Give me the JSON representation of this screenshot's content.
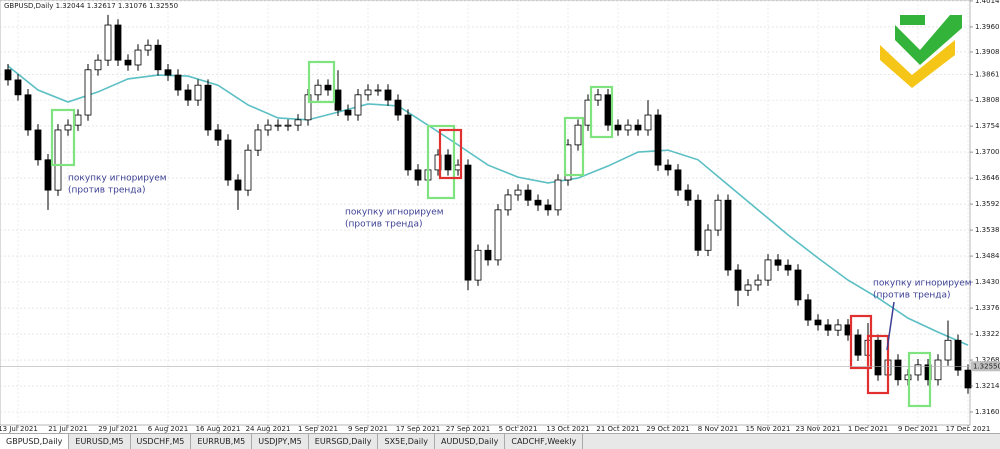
{
  "chart_data": {
    "type": "candlestick",
    "title": "GBPUSD,Daily  1.32044 1.32617 1.31076 1.32550",
    "categories": [
      null,
      "13 Jul 2021",
      null,
      null,
      null,
      null,
      "21 Jul 2021",
      null,
      null,
      null,
      null,
      "29 Jul 2021",
      null,
      null,
      null,
      null,
      "6 Aug 2021",
      null,
      null,
      null,
      null,
      "16 Aug 2021",
      null,
      null,
      null,
      null,
      "24 Aug 2021",
      null,
      null,
      null,
      null,
      "1 Sep 2021",
      null,
      null,
      null,
      null,
      "9 Sep 2021",
      null,
      null,
      null,
      null,
      "17 Sep 2021",
      null,
      null,
      null,
      null,
      "27 Sep 2021",
      null,
      null,
      null,
      null,
      "5 Oct 2021",
      null,
      null,
      null,
      null,
      "13 Oct 2021",
      null,
      null,
      null,
      null,
      "21 Oct 2021",
      null,
      null,
      null,
      null,
      "29 Oct 2021",
      null,
      null,
      null,
      null,
      "8 Nov 2021",
      null,
      null,
      null,
      null,
      "15 Nov 2021",
      null,
      null,
      null,
      null,
      "23 Nov 2021",
      null,
      null,
      null,
      null,
      "1 Dec 2021",
      null,
      null,
      null,
      null,
      "9 Dec 2021",
      null,
      null,
      null,
      null,
      "17 Dec 2021"
    ],
    "open": [
      1.3871,
      1.385,
      1.3819,
      1.3746,
      1.3684,
      1.3621,
      1.3746,
      1.3756,
      1.3777,
      1.3871,
      1.3891,
      1.3964,
      1.3891,
      1.3881,
      1.3912,
      1.3922,
      1.3871,
      1.386,
      1.3829,
      1.3808,
      1.3839,
      1.3746,
      1.3725,
      1.3642,
      1.3621,
      1.3704,
      1.3746,
      1.3756,
      1.3756,
      1.3756,
      1.3767,
      1.3819,
      1.3839,
      1.3829,
      1.3787,
      1.3777,
      1.3819,
      1.3829,
      1.3829,
      1.3808,
      1.3777,
      1.3663,
      1.3642,
      1.3663,
      1.3694,
      1.3663,
      1.3673,
      1.3434,
      1.3496,
      1.3476,
      1.358,
      1.3611,
      1.3621,
      1.36,
      1.359,
      1.358,
      1.3642,
      1.3715,
      1.3756,
      1.3808,
      1.3819,
      1.3756,
      1.3746,
      1.3756,
      1.3746,
      1.3777,
      1.3673,
      1.3663,
      1.3621,
      1.36,
      1.3496,
      1.3538,
      1.36,
      1.3455,
      1.3413,
      1.3424,
      1.3434,
      1.3476,
      1.3465,
      1.3455,
      1.3393,
      1.3351,
      1.3341,
      1.333,
      1.3341,
      1.332,
      1.3278,
      1.3309,
      1.3237,
      1.3268,
      1.3227,
      1.3237,
      1.3258,
      1.3227,
      1.3268,
      1.3309,
      1.3247
    ],
    "high": [
      1.3883,
      1.3862,
      1.3831,
      1.3758,
      1.3696,
      1.3758,
      1.3768,
      1.3789,
      1.3883,
      1.3903,
      1.3985,
      1.3976,
      1.3903,
      1.3924,
      1.3934,
      1.3934,
      1.3883,
      1.3872,
      1.3841,
      1.3851,
      1.3851,
      1.3758,
      1.3737,
      1.3654,
      1.3716,
      1.3758,
      1.3768,
      1.3768,
      1.3768,
      1.3779,
      1.3831,
      1.3851,
      1.3851,
      1.387,
      1.3799,
      1.3831,
      1.3841,
      1.3841,
      1.3841,
      1.382,
      1.3789,
      1.3675,
      1.3675,
      1.3706,
      1.3706,
      1.3685,
      1.3685,
      1.3508,
      1.3508,
      1.3592,
      1.3623,
      1.3633,
      1.3633,
      1.3612,
      1.3602,
      1.3654,
      1.3727,
      1.3768,
      1.382,
      1.3831,
      1.3831,
      1.3768,
      1.3768,
      1.3768,
      1.3808,
      1.3789,
      1.3685,
      1.3675,
      1.3633,
      1.3612,
      1.355,
      1.3612,
      1.3612,
      1.3467,
      1.3436,
      1.3446,
      1.3488,
      1.3488,
      1.3477,
      1.3467,
      1.3405,
      1.3363,
      1.3353,
      1.3353,
      1.3353,
      1.3332,
      1.3345,
      1.3321,
      1.328,
      1.328,
      1.3249,
      1.327,
      1.327,
      1.328,
      1.335,
      1.3321,
      1.3259
    ],
    "low": [
      1.3838,
      1.3807,
      1.3734,
      1.3672,
      1.358,
      1.3609,
      1.3734,
      1.3744,
      1.3765,
      1.3859,
      1.3879,
      1.3879,
      1.3869,
      1.3869,
      1.39,
      1.3859,
      1.3848,
      1.3817,
      1.3796,
      1.3796,
      1.3734,
      1.3713,
      1.363,
      1.358,
      1.3609,
      1.3692,
      1.3734,
      1.3744,
      1.3744,
      1.3744,
      1.3755,
      1.3807,
      1.3817,
      1.3775,
      1.3765,
      1.3765,
      1.3807,
      1.3817,
      1.3796,
      1.3765,
      1.3651,
      1.363,
      1.363,
      1.3651,
      1.3651,
      1.3651,
      1.3413,
      1.3422,
      1.3464,
      1.3464,
      1.3568,
      1.3599,
      1.3588,
      1.3578,
      1.3568,
      1.3568,
      1.363,
      1.3703,
      1.3744,
      1.3796,
      1.3744,
      1.3734,
      1.3734,
      1.3734,
      1.3734,
      1.3661,
      1.3651,
      1.3609,
      1.3588,
      1.3484,
      1.3484,
      1.3526,
      1.3443,
      1.338,
      1.3401,
      1.3412,
      1.3422,
      1.3453,
      1.3443,
      1.3381,
      1.3339,
      1.3329,
      1.3318,
      1.3318,
      1.3308,
      1.3266,
      1.3266,
      1.3225,
      1.3225,
      1.3215,
      1.3215,
      1.3225,
      1.3215,
      1.3215,
      1.3256,
      1.3235,
      1.3198
    ],
    "close": [
      1.385,
      1.3819,
      1.3746,
      1.3684,
      1.3621,
      1.3746,
      1.3756,
      1.3777,
      1.3871,
      1.3891,
      1.3964,
      1.3891,
      1.3881,
      1.3912,
      1.3922,
      1.3871,
      1.386,
      1.3829,
      1.3808,
      1.3839,
      1.3746,
      1.3725,
      1.3642,
      1.3621,
      1.3704,
      1.3746,
      1.3756,
      1.3756,
      1.3756,
      1.3767,
      1.3819,
      1.3839,
      1.3829,
      1.3787,
      1.3777,
      1.3819,
      1.3829,
      1.3829,
      1.3808,
      1.3777,
      1.3663,
      1.3642,
      1.3663,
      1.3694,
      1.3663,
      1.3673,
      1.3434,
      1.3496,
      1.3476,
      1.358,
      1.3611,
      1.3621,
      1.36,
      1.359,
      1.358,
      1.3642,
      1.3715,
      1.3756,
      1.3808,
      1.3819,
      1.3756,
      1.3746,
      1.3756,
      1.3746,
      1.3777,
      1.3673,
      1.3663,
      1.3621,
      1.36,
      1.3496,
      1.3538,
      1.36,
      1.3455,
      1.3413,
      1.3424,
      1.3434,
      1.3476,
      1.3465,
      1.3455,
      1.3393,
      1.3351,
      1.3341,
      1.333,
      1.3341,
      1.332,
      1.3278,
      1.3309,
      1.3237,
      1.3268,
      1.3227,
      1.3237,
      1.3258,
      1.3227,
      1.3268,
      1.3309,
      1.3247,
      1.321
    ],
    "up_color": "#ffffff",
    "down_color": "#000000",
    "ma": {
      "color": "#5bbfc4",
      "x": [
        0,
        3,
        6,
        9,
        12,
        15,
        18,
        21,
        24,
        27,
        30,
        33,
        36,
        39,
        42,
        45,
        48,
        51,
        54,
        57,
        60,
        63,
        66,
        69,
        72,
        75,
        78,
        81,
        84,
        87,
        90,
        93,
        96
      ],
      "values": [
        1.3879,
        1.3829,
        1.3804,
        1.3825,
        1.3852,
        1.386,
        1.3858,
        1.3839,
        1.3798,
        1.3771,
        1.3767,
        1.3783,
        1.38,
        1.3796,
        1.3756,
        1.3715,
        1.3673,
        1.3648,
        1.3636,
        1.3646,
        1.3671,
        1.37,
        1.3704,
        1.3684,
        1.3632,
        1.358,
        1.3528,
        1.348,
        1.3434,
        1.3397,
        1.3355,
        1.3326,
        1.3299
      ]
    },
    "ylim": [
      1.3133,
      1.4016
    ],
    "yticks": [
      {
        "value": 1.4014,
        "label": "1.40140"
      },
      {
        "value": 1.396,
        "label": "1.39600"
      },
      {
        "value": 1.3908,
        "label": "1.39080"
      },
      {
        "value": 1.3861,
        "label": "1.38610"
      },
      {
        "value": 1.3808,
        "label": "1.38080"
      },
      {
        "value": 1.3754,
        "label": "1.37540"
      },
      {
        "value": 1.37,
        "label": "1.37000"
      },
      {
        "value": 1.3646,
        "label": "1.36460"
      },
      {
        "value": 1.3592,
        "label": "1.35920"
      },
      {
        "value": 1.3538,
        "label": "1.35380"
      },
      {
        "value": 1.3484,
        "label": "1.34840"
      },
      {
        "value": 1.343,
        "label": "1.34300"
      },
      {
        "value": 1.3376,
        "label": "1.33760"
      },
      {
        "value": 1.3322,
        "label": "1.33220"
      },
      {
        "value": 1.3268,
        "label": "1.32680"
      },
      {
        "value": 1.3214,
        "label": "1.32140"
      },
      {
        "value": 1.316,
        "label": "1.31600"
      }
    ],
    "last_price": {
      "value": 1.3255,
      "label": "1.32550"
    },
    "grid": true,
    "annotations": [
      {
        "lines": [
          "покупку игнорируем",
          "(против тренда)"
        ]
      },
      {
        "lines": [
          "покупку игнорируем",
          "(против тренда)"
        ]
      },
      {
        "lines": [
          "покупку игнорируем",
          "(против тренда)"
        ]
      }
    ]
  },
  "tabs": [
    "GBPUSD,Daily",
    "EURUSD,M5",
    "USDCHF,M5",
    "EURRUB,M5",
    "USDJPY,M5",
    "EURSGD,Daily",
    "SX5E,Daily",
    "AUDUSD,Daily",
    "CADCHF,Weekly"
  ]
}
